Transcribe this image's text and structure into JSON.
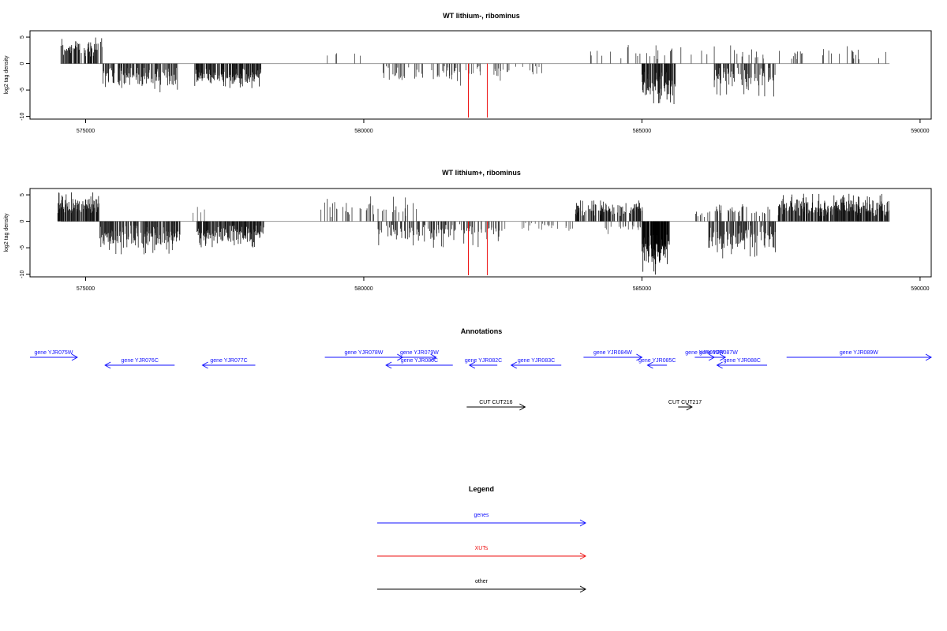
{
  "colors": {
    "genes": "#1010ff",
    "xuts": "#ee1111",
    "other": "#000000",
    "axis": "#000000",
    "baseline": "#999999"
  },
  "chart_data": [
    {
      "type": "bar",
      "title": "WT lithium-, ribominus",
      "ylabel": "log2 tag density",
      "xlim": [
        574000,
        590200
      ],
      "ylim": [
        -10.5,
        6.2
      ],
      "x_ticks": [
        575000,
        580000,
        585000,
        590000
      ],
      "x_tick_labels": [
        "575000",
        "580000",
        "585000",
        "590000"
      ],
      "y_ticks": [
        5,
        0,
        -5,
        -10
      ],
      "y_tick_labels": [
        "5",
        "0",
        "-5",
        "-10"
      ],
      "grid": false,
      "segments": [
        {
          "start": 574550,
          "end": 575300,
          "sign": 1,
          "min": 1.2,
          "max": 5.3,
          "mean": 2.8,
          "density": 0.45,
          "shade": "#111111"
        },
        {
          "start": 575300,
          "end": 576650,
          "sign": -1,
          "min": 0.8,
          "max": 5.5,
          "mean": 2.8,
          "density": 0.55,
          "shade": "#222222"
        },
        {
          "start": 576950,
          "end": 578150,
          "sign": -1,
          "min": 1.0,
          "max": 4.8,
          "mean": 2.9,
          "density": 0.6,
          "shade": "#111111"
        },
        {
          "start": 579200,
          "end": 579950,
          "sign": 1,
          "min": 1.0,
          "max": 2.8,
          "mean": 1.8,
          "density": 0.02,
          "shade": "#444444"
        },
        {
          "start": 580350,
          "end": 581750,
          "sign": -1,
          "min": 0.5,
          "max": 4.2,
          "mean": 2.0,
          "density": 0.22,
          "shade": "#333333"
        },
        {
          "start": 581800,
          "end": 583200,
          "sign": -1,
          "min": 0.5,
          "max": 3.3,
          "mean": 1.6,
          "density": 0.12,
          "shade": "#444444"
        },
        {
          "start": 583950,
          "end": 585600,
          "sign": 1,
          "min": 0.8,
          "max": 3.6,
          "mean": 2.0,
          "density": 0.08,
          "shade": "#333333"
        },
        {
          "start": 585000,
          "end": 585600,
          "sign": -1,
          "min": 1.5,
          "max": 7.8,
          "mean": 4.0,
          "density": 0.7,
          "shade": "#111111"
        },
        {
          "start": 585700,
          "end": 589450,
          "sign": 1,
          "min": 0.8,
          "max": 3.6,
          "mean": 2.0,
          "density": 0.07,
          "shade": "#333333"
        },
        {
          "start": 586300,
          "end": 587400,
          "sign": -1,
          "min": 0.8,
          "max": 6.3,
          "mean": 3.0,
          "density": 0.45,
          "shade": "#222222"
        }
      ],
      "red_marks": [
        {
          "x": 581880,
          "value": -10.2
        },
        {
          "x": 582220,
          "value": -10.2
        }
      ]
    },
    {
      "type": "bar",
      "title": "WT lithium+, ribominus",
      "ylabel": "log2 tag density",
      "xlim": [
        574000,
        590200
      ],
      "ylim": [
        -10.5,
        6.2
      ],
      "x_ticks": [
        575000,
        580000,
        585000,
        590000
      ],
      "x_tick_labels": [
        "575000",
        "580000",
        "585000",
        "590000"
      ],
      "y_ticks": [
        5,
        0,
        -5,
        -10
      ],
      "y_tick_labels": [
        "5",
        "0",
        "-5",
        "-10"
      ],
      "grid": false,
      "segments": [
        {
          "start": 574500,
          "end": 575250,
          "sign": 1,
          "min": 1.5,
          "max": 5.6,
          "mean": 3.0,
          "density": 0.6,
          "shade": "#111111"
        },
        {
          "start": 575250,
          "end": 576700,
          "sign": -1,
          "min": 0.8,
          "max": 6.3,
          "mean": 3.0,
          "density": 0.6,
          "shade": "#222222"
        },
        {
          "start": 576800,
          "end": 577200,
          "sign": 1,
          "min": 1.0,
          "max": 3.6,
          "mean": 2.2,
          "density": 0.05,
          "shade": "#555555"
        },
        {
          "start": 577000,
          "end": 578200,
          "sign": -1,
          "min": 0.8,
          "max": 5.0,
          "mean": 2.8,
          "density": 0.6,
          "shade": "#111111"
        },
        {
          "start": 579200,
          "end": 581000,
          "sign": 1,
          "min": 0.8,
          "max": 4.8,
          "mean": 2.0,
          "density": 0.12,
          "shade": "#333333"
        },
        {
          "start": 580250,
          "end": 582500,
          "sign": -1,
          "min": 0.5,
          "max": 5.0,
          "mean": 2.2,
          "density": 0.3,
          "shade": "#222222"
        },
        {
          "start": 582500,
          "end": 583800,
          "sign": -1,
          "min": 0.3,
          "max": 2.0,
          "mean": 0.9,
          "density": 0.08,
          "shade": "#555555"
        },
        {
          "start": 583800,
          "end": 585050,
          "sign": 1,
          "min": 1.0,
          "max": 4.0,
          "mean": 2.4,
          "density": 0.4,
          "shade": "#111111"
        },
        {
          "start": 584300,
          "end": 585000,
          "sign": -1,
          "min": 0.5,
          "max": 2.5,
          "mean": 1.2,
          "density": 0.1,
          "shade": "#444444"
        },
        {
          "start": 585000,
          "end": 585500,
          "sign": -1,
          "min": 2.5,
          "max": 10.2,
          "mean": 6.0,
          "density": 0.85,
          "shade": "#000000"
        },
        {
          "start": 585950,
          "end": 587300,
          "sign": 1,
          "min": 0.8,
          "max": 3.5,
          "mean": 2.0,
          "density": 0.2,
          "shade": "#222222"
        },
        {
          "start": 586200,
          "end": 587400,
          "sign": -1,
          "min": 0.8,
          "max": 7.0,
          "mean": 3.2,
          "density": 0.55,
          "shade": "#222222"
        },
        {
          "start": 587450,
          "end": 589450,
          "sign": 1,
          "min": 1.0,
          "max": 5.3,
          "mean": 2.6,
          "density": 0.65,
          "shade": "#111111"
        }
      ],
      "red_marks": [
        {
          "x": 581880,
          "value": -10.2
        },
        {
          "x": 582220,
          "value": -10.2
        }
      ]
    }
  ],
  "annotations": {
    "title": "Annotations",
    "features": [
      {
        "label": "gene YJR075W",
        "type": "genes",
        "strand": "+",
        "start": 574000,
        "end": 574850,
        "row": 0
      },
      {
        "label": "gene YJR076C",
        "type": "genes",
        "strand": "-",
        "start": 575350,
        "end": 576600,
        "row": 1
      },
      {
        "label": "gene YJR077C",
        "type": "genes",
        "strand": "-",
        "start": 577100,
        "end": 578050,
        "row": 1
      },
      {
        "label": "gene YJR078W",
        "type": "genes",
        "strand": "+",
        "start": 579300,
        "end": 580700,
        "row": 0
      },
      {
        "label": "gene YJR079W",
        "type": "genes",
        "strand": "+",
        "start": 580700,
        "end": 581300,
        "row": 0
      },
      {
        "label": "gene YJR080C",
        "type": "genes",
        "strand": "-",
        "start": 580400,
        "end": 581600,
        "row": 1
      },
      {
        "label": "gene YJR082C",
        "type": "genes",
        "strand": "-",
        "start": 581900,
        "end": 582400,
        "row": 1
      },
      {
        "label": "gene YJR083C",
        "type": "genes",
        "strand": "-",
        "start": 582650,
        "end": 583550,
        "row": 1
      },
      {
        "label": "gene YJR084W",
        "type": "genes",
        "strand": "+",
        "start": 583950,
        "end": 585000,
        "row": 0
      },
      {
        "label": "gene YJR085C",
        "type": "genes",
        "strand": "-",
        "start": 585100,
        "end": 585450,
        "row": 1
      },
      {
        "label": "gene YJR086W",
        "type": "genes",
        "strand": "+",
        "start": 585950,
        "end": 586300,
        "row": 0
      },
      {
        "label": "gene YJR087W",
        "type": "genes",
        "strand": "+",
        "start": 586250,
        "end": 586500,
        "row": 0
      },
      {
        "label": "gene YJR088C",
        "type": "genes",
        "strand": "-",
        "start": 586350,
        "end": 587250,
        "row": 1
      },
      {
        "label": "gene YJR089W",
        "type": "genes",
        "strand": "+",
        "start": 587600,
        "end": 590200,
        "row": 0
      },
      {
        "label": "CUT CUT216",
        "type": "other",
        "strand": "+",
        "start": 581850,
        "end": 582900,
        "row": 2
      },
      {
        "label": "CUT CUT217",
        "type": "other",
        "strand": "+",
        "start": 585650,
        "end": 585900,
        "row": 2
      }
    ]
  },
  "legend": {
    "title": "Legend",
    "entries": [
      {
        "label": "genes",
        "type": "genes"
      },
      {
        "label": "XUTs",
        "type": "xuts"
      },
      {
        "label": "other",
        "type": "other"
      }
    ]
  }
}
